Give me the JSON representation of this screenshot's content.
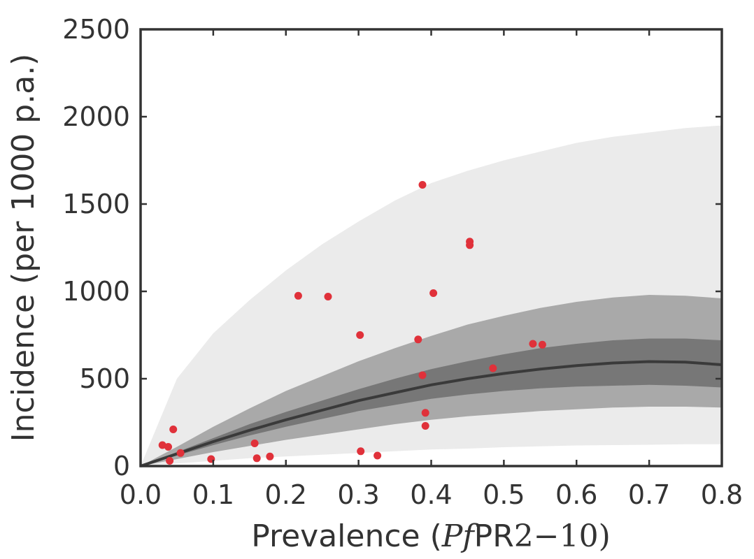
{
  "chart_data": {
    "type": "scatter",
    "xlabel_prefix": "Prevalence (",
    "xlabel_italic": "Pf",
    "xlabel_mid": "PR",
    "xlabel_range": "2−10",
    "xlabel_suffix": ")",
    "ylabel": "Incidence (per 1000 p.a.)",
    "xlim": [
      0.0,
      0.8
    ],
    "ylim": [
      0,
      2500
    ],
    "xticks": [
      "0.0",
      "0.1",
      "0.2",
      "0.3",
      "0.4",
      "0.5",
      "0.6",
      "0.7",
      "0.8"
    ],
    "yticks": [
      "0",
      "500",
      "1000",
      "1500",
      "2000",
      "2500"
    ],
    "grid": false,
    "colors": {
      "points": "#e0313a",
      "band_outer": "#ebebeb",
      "band_mid": "#a9a9a9",
      "band_inner": "#777777",
      "median_line": "#3a3a3a",
      "frame": "#333333"
    },
    "bands": {
      "x": [
        0.0,
        0.05,
        0.1,
        0.15,
        0.2,
        0.25,
        0.3,
        0.35,
        0.4,
        0.45,
        0.5,
        0.55,
        0.6,
        0.65,
        0.7,
        0.75,
        0.8
      ],
      "outer_lower": [
        0,
        15,
        30,
        45,
        55,
        65,
        75,
        85,
        95,
        100,
        108,
        113,
        118,
        120,
        122,
        125,
        125
      ],
      "outer_upper": [
        0,
        500,
        760,
        950,
        1120,
        1270,
        1400,
        1520,
        1620,
        1690,
        1750,
        1800,
        1850,
        1885,
        1910,
        1935,
        1950
      ],
      "mid_lower": [
        0,
        40,
        80,
        115,
        150,
        180,
        210,
        240,
        265,
        285,
        300,
        315,
        325,
        335,
        340,
        340,
        335
      ],
      "mid_upper": [
        0,
        110,
        225,
        330,
        430,
        515,
        600,
        675,
        745,
        810,
        860,
        905,
        940,
        965,
        980,
        975,
        960
      ],
      "inner_lower": [
        0,
        60,
        120,
        175,
        225,
        270,
        315,
        350,
        385,
        410,
        430,
        445,
        455,
        460,
        465,
        460,
        450
      ],
      "inner_upper": [
        0,
        80,
        160,
        240,
        310,
        375,
        440,
        500,
        555,
        600,
        640,
        675,
        700,
        720,
        730,
        730,
        720
      ],
      "median": [
        0,
        70,
        140,
        205,
        265,
        320,
        375,
        420,
        465,
        500,
        530,
        555,
        575,
        590,
        598,
        595,
        580
      ]
    },
    "points": [
      {
        "x": 0.03,
        "y": 120
      },
      {
        "x": 0.038,
        "y": 110
      },
      {
        "x": 0.04,
        "y": 30
      },
      {
        "x": 0.045,
        "y": 210
      },
      {
        "x": 0.055,
        "y": 75
      },
      {
        "x": 0.097,
        "y": 40
      },
      {
        "x": 0.157,
        "y": 130
      },
      {
        "x": 0.16,
        "y": 45
      },
      {
        "x": 0.178,
        "y": 55
      },
      {
        "x": 0.217,
        "y": 975
      },
      {
        "x": 0.258,
        "y": 970
      },
      {
        "x": 0.302,
        "y": 750
      },
      {
        "x": 0.303,
        "y": 85
      },
      {
        "x": 0.326,
        "y": 60
      },
      {
        "x": 0.382,
        "y": 725
      },
      {
        "x": 0.388,
        "y": 520
      },
      {
        "x": 0.388,
        "y": 1610
      },
      {
        "x": 0.392,
        "y": 305
      },
      {
        "x": 0.392,
        "y": 230
      },
      {
        "x": 0.403,
        "y": 990
      },
      {
        "x": 0.453,
        "y": 1285
      },
      {
        "x": 0.453,
        "y": 1265
      },
      {
        "x": 0.485,
        "y": 560
      },
      {
        "x": 0.54,
        "y": 700
      },
      {
        "x": 0.553,
        "y": 695
      }
    ]
  }
}
